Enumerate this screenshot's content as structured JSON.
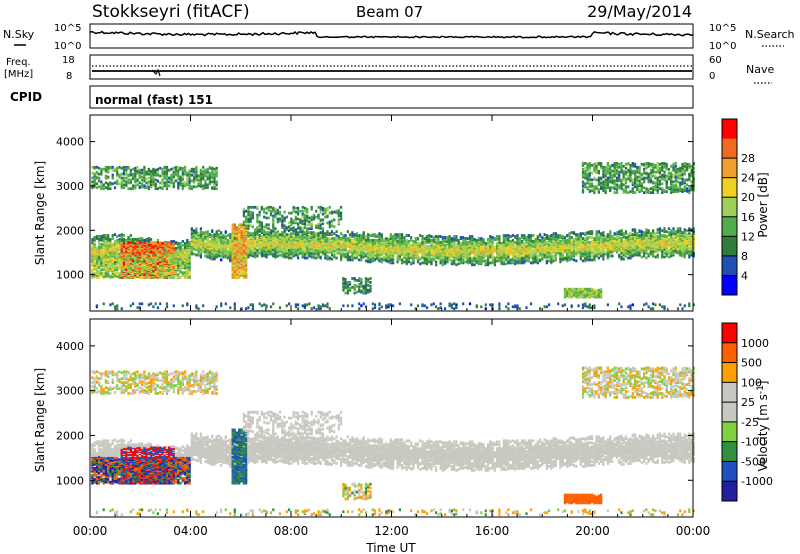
{
  "header": {
    "radar": "Stokkseyri (fitACF)",
    "beam": "Beam 07",
    "date": "29/May/2014"
  },
  "nsky_panel": {
    "left_label": "N.Sky",
    "left_ticks": [
      "10^5",
      "10^0"
    ],
    "right_ticks": [
      "10^5",
      "10^0"
    ],
    "right_label": "N.Search"
  },
  "freq_panel": {
    "left_label_1": "Freq.",
    "left_label_2": "[MHz]",
    "left_ticks": [
      "18",
      "8"
    ],
    "right_ticks": [
      "60",
      "0"
    ],
    "right_label": "Nave"
  },
  "cpid": {
    "label": "CPID",
    "value": "normal (fast) 151"
  },
  "time_axis": {
    "xlabel": "Time UT",
    "ticks": [
      "00:00",
      "04:00",
      "08:00",
      "12:00",
      "16:00",
      "20:00",
      "00:00"
    ]
  },
  "colors": {
    "power_scale": [
      "#0000ff",
      "#1f4fb0",
      "#2e7d3a",
      "#4fae4a",
      "#9fd15a",
      "#f0d020",
      "#f0a030",
      "#f06a20",
      "#ff0000"
    ],
    "velocity_scale": [
      "#ff0000",
      "#ff6000",
      "#ffa000",
      "#c8c8c0",
      "#c8c8c0",
      "#80d040",
      "#309040",
      "#2050c0",
      "#2020a0"
    ],
    "ground_scatter": "#c8c8c0"
  },
  "chart_data": [
    {
      "type": "heatmap",
      "title": "",
      "ylabel": "Slant Range [km]",
      "xlabel": "",
      "x_units": "hours UT",
      "xlim": [
        0,
        24
      ],
      "ylim": [
        180,
        4600
      ],
      "yticks": [
        "1000",
        "2000",
        "3000",
        "4000"
      ],
      "colorbar": {
        "label": "Power [dB]",
        "ticks": [
          "4",
          "8",
          "12",
          "16",
          "20",
          "24",
          "28"
        ],
        "range": [
          0,
          30
        ]
      },
      "regions": [
        {
          "name": "main echo band",
          "x_range": [
            0,
            24
          ],
          "y_range": [
            1300,
            2000
          ]
        },
        {
          "name": "strong early echo",
          "x_range": [
            0.8,
            3.5
          ],
          "y_range": [
            900,
            1800
          ],
          "peak_power_db": 28
        },
        {
          "name": "upper band",
          "x_range": [
            0,
            5
          ],
          "y_range": [
            2900,
            3500
          ]
        },
        {
          "name": "upper band late",
          "x_range": [
            19.5,
            24
          ],
          "y_range": [
            2800,
            3500
          ]
        },
        {
          "name": "near-range echo",
          "x_range": [
            18.8,
            20.3
          ],
          "y_range": [
            450,
            650
          ],
          "peak_power_db": 16
        }
      ]
    },
    {
      "type": "heatmap",
      "title": "",
      "ylabel": "Slant Range [km]",
      "xlabel": "Time UT",
      "x_units": "hours UT",
      "xlim": [
        0,
        24
      ],
      "ylim": [
        180,
        4600
      ],
      "yticks": [
        "1000",
        "2000",
        "3000",
        "4000"
      ],
      "colorbar": {
        "label": "Velocity [m s^-1]",
        "ticks": [
          "1000",
          "500",
          "100",
          "25",
          "-25",
          "-100",
          "-500",
          "-1000"
        ],
        "range": [
          -1200,
          1200
        ]
      },
      "regions": [
        {
          "name": "ground scatter band",
          "x_range": [
            4,
            24
          ],
          "y_range": [
            1300,
            2200
          ],
          "velocity": 0
        },
        {
          "name": "mixed early echo",
          "x_range": [
            0,
            3.8
          ],
          "y_range": [
            900,
            1500
          ],
          "velocity": 500
        },
        {
          "name": "receding early echo",
          "x_range": [
            1.5,
            3.5
          ],
          "y_range": [
            1000,
            1600
          ],
          "velocity": -300
        },
        {
          "name": "green echo",
          "x_range": [
            5.5,
            6.2
          ],
          "y_range": [
            1000,
            1900
          ],
          "velocity": 200
        },
        {
          "name": "near-range echo",
          "x_range": [
            18.8,
            20.3
          ],
          "y_range": [
            450,
            650
          ],
          "velocity": -300
        }
      ]
    }
  ]
}
